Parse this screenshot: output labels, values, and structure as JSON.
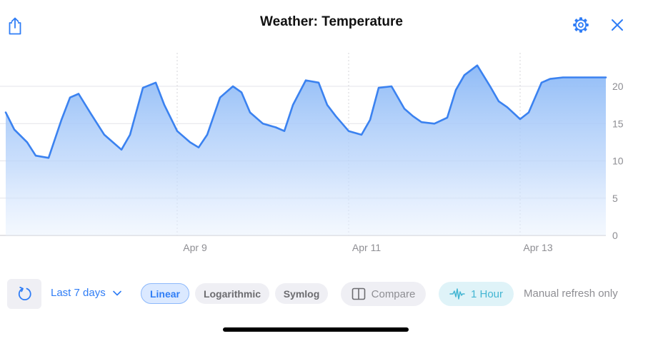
{
  "header": {
    "title": "Weather: Temperature"
  },
  "toolbar": {
    "range_label": "Last 7 days",
    "scale_options": [
      {
        "label": "Linear",
        "active": true
      },
      {
        "label": "Logarithmic",
        "active": false
      },
      {
        "label": "Symlog",
        "active": false
      }
    ],
    "compare_label": "Compare",
    "interval_label": "1 Hour",
    "refresh_note": "Manual refresh only"
  },
  "icons": {
    "share": "share-icon",
    "settings": "gear-icon",
    "close": "close-icon",
    "refresh": "refresh-icon",
    "dropdown": "chevron-down-icon",
    "compare": "split-view-icon",
    "interval": "waveform-icon"
  },
  "colors": {
    "accent": "#2f7df6",
    "line": "#3b82f0",
    "interval": "#44b6d3"
  },
  "chart_data": {
    "type": "area",
    "title": "",
    "xlabel": "",
    "ylabel": "",
    "x_ticks": [
      "Apr 9",
      "Apr 11",
      "Apr 13"
    ],
    "y_ticks": [
      0,
      5,
      10,
      15,
      20
    ],
    "ylim": [
      0,
      24.5
    ],
    "grid": true,
    "x_range_days": [
      0,
      7
    ],
    "series": [
      {
        "x": [
          0,
          0.1,
          0.25,
          0.35,
          0.5,
          0.65,
          0.75,
          0.85,
          1.0,
          1.15,
          1.25,
          1.35,
          1.45,
          1.6,
          1.75,
          1.85,
          2.0,
          2.15,
          2.25,
          2.35,
          2.5,
          2.65,
          2.75,
          2.85,
          3.0,
          3.15,
          3.25,
          3.35,
          3.5,
          3.65,
          3.75,
          3.85,
          4.0,
          4.15,
          4.25,
          4.35,
          4.5,
          4.65,
          4.75,
          4.85,
          5.0,
          5.15,
          5.25,
          5.35,
          5.5,
          5.65,
          5.75,
          5.85,
          6.0,
          6.1,
          6.25,
          6.35,
          6.5,
          6.65,
          6.75,
          6.85,
          7.0
        ],
        "values": [
          16.5,
          14.2,
          12.5,
          10.7,
          10.4,
          15.5,
          18.5,
          19.0,
          16.2,
          13.5,
          12.5,
          11.5,
          13.5,
          19.8,
          20.5,
          17.5,
          14.0,
          12.5,
          11.8,
          13.5,
          18.5,
          20.0,
          19.2,
          16.5,
          15.0,
          14.5,
          14.0,
          17.5,
          20.8,
          20.5,
          17.5,
          16.0,
          14.0,
          13.5,
          15.5,
          19.8,
          20.0,
          17.0,
          16.0,
          15.2,
          15.0,
          15.8,
          19.5,
          21.5,
          22.8,
          20.0,
          18.0,
          17.2,
          15.6,
          16.5,
          20.5,
          21.0,
          21.2,
          21.2,
          21.2,
          21.2,
          21.2
        ]
      }
    ]
  }
}
